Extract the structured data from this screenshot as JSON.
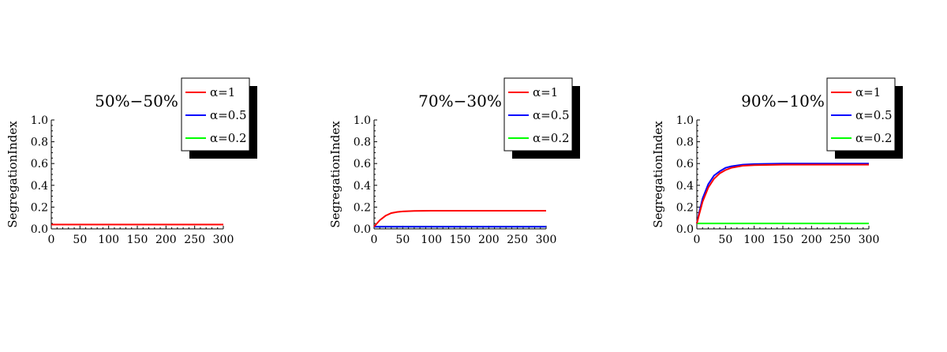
{
  "chart_data": [
    {
      "type": "line",
      "title": "50%−50%",
      "xlabel": "",
      "ylabel": "SegregationIndex",
      "xlim": [
        0,
        300
      ],
      "ylim": [
        0,
        1.0
      ],
      "xticks": [
        "0",
        "50",
        "100",
        "150",
        "200",
        "250",
        "300"
      ],
      "yticks": [
        "0.0",
        "0.2",
        "0.4",
        "0.6",
        "0.8",
        "1.0"
      ],
      "legend_position": "top-right",
      "series": [
        {
          "name": "α=1",
          "color": "#ff0000",
          "x": [
            0,
            10,
            50,
            100,
            150,
            200,
            250,
            300
          ],
          "y": [
            0.04,
            0.04,
            0.04,
            0.04,
            0.04,
            0.04,
            0.04,
            0.04
          ]
        },
        {
          "name": "α=0.5",
          "color": "#0000ff",
          "x": [
            0,
            10,
            50,
            100,
            150,
            200,
            250,
            300
          ],
          "y": [
            0.04,
            0.04,
            0.04,
            0.04,
            0.04,
            0.04,
            0.04,
            0.04
          ]
        },
        {
          "name": "α=0.2",
          "color": "#00ff00",
          "x": [
            0,
            10,
            50,
            100,
            150,
            200,
            250,
            300
          ],
          "y": [
            0.04,
            0.04,
            0.04,
            0.04,
            0.04,
            0.04,
            0.04,
            0.04
          ]
        }
      ]
    },
    {
      "type": "line",
      "title": "70%−30%",
      "xlabel": "",
      "ylabel": "SegregationIndex",
      "xlim": [
        0,
        300
      ],
      "ylim": [
        0,
        1.0
      ],
      "xticks": [
        "0",
        "50",
        "100",
        "150",
        "200",
        "250",
        "300"
      ],
      "yticks": [
        "0.0",
        "0.2",
        "0.4",
        "0.6",
        "0.8",
        "1.0"
      ],
      "legend_position": "top-right",
      "series": [
        {
          "name": "α=1",
          "color": "#ff0000",
          "x": [
            0,
            5,
            10,
            20,
            30,
            40,
            50,
            70,
            100,
            150,
            200,
            250,
            300
          ],
          "y": [
            0.02,
            0.05,
            0.08,
            0.12,
            0.145,
            0.155,
            0.16,
            0.165,
            0.167,
            0.167,
            0.167,
            0.167,
            0.167
          ]
        },
        {
          "name": "α=0.5",
          "color": "#0000ff",
          "x": [
            0,
            50,
            100,
            150,
            200,
            250,
            300
          ],
          "y": [
            0.02,
            0.02,
            0.02,
            0.02,
            0.02,
            0.02,
            0.02
          ]
        },
        {
          "name": "α=0.2",
          "color": "#00ff00",
          "x": [
            0,
            50,
            100,
            150,
            200,
            250,
            300
          ],
          "y": [
            0.02,
            0.02,
            0.02,
            0.02,
            0.02,
            0.02,
            0.02
          ]
        }
      ]
    },
    {
      "type": "line",
      "title": "90%−10%",
      "xlabel": "",
      "ylabel": "SegregationIndex",
      "xlim": [
        0,
        300
      ],
      "ylim": [
        0,
        1.0
      ],
      "xticks": [
        "0",
        "50",
        "100",
        "150",
        "200",
        "250",
        "300"
      ],
      "yticks": [
        "0.0",
        "0.2",
        "0.4",
        "0.6",
        "0.8",
        "1.0"
      ],
      "legend_position": "top-right",
      "series": [
        {
          "name": "α=1",
          "color": "#ff0000",
          "x": [
            0,
            5,
            10,
            20,
            30,
            40,
            50,
            60,
            80,
            100,
            150,
            200,
            250,
            300
          ],
          "y": [
            0.05,
            0.15,
            0.25,
            0.38,
            0.46,
            0.51,
            0.54,
            0.56,
            0.58,
            0.585,
            0.59,
            0.59,
            0.59,
            0.59
          ]
        },
        {
          "name": "α=0.5",
          "color": "#0000ff",
          "x": [
            0,
            5,
            10,
            20,
            30,
            40,
            50,
            60,
            80,
            100,
            150,
            200,
            250,
            300
          ],
          "y": [
            0.05,
            0.17,
            0.28,
            0.41,
            0.49,
            0.53,
            0.56,
            0.575,
            0.59,
            0.595,
            0.6,
            0.6,
            0.6,
            0.6
          ]
        },
        {
          "name": "α=0.2",
          "color": "#00ff00",
          "x": [
            0,
            50,
            100,
            150,
            200,
            250,
            300
          ],
          "y": [
            0.05,
            0.05,
            0.05,
            0.05,
            0.05,
            0.05,
            0.05
          ]
        }
      ]
    }
  ]
}
